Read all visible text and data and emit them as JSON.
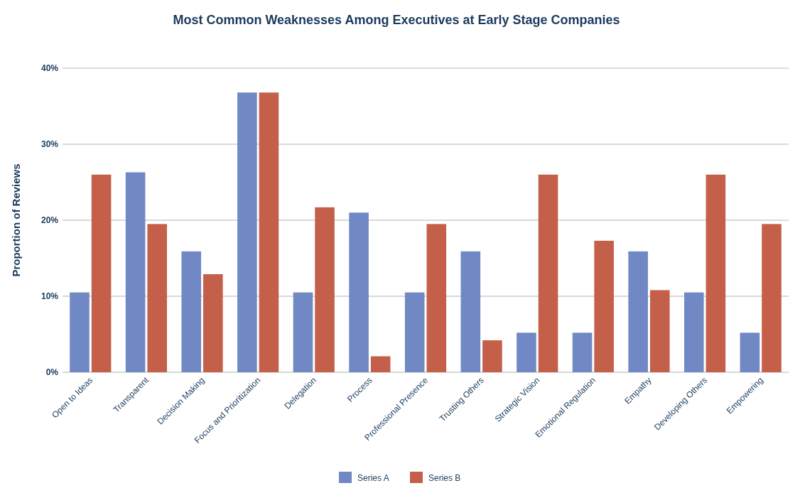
{
  "chart_data": {
    "type": "bar",
    "title": "Most Common Weaknesses Among Executives at Early Stage Companies",
    "ylabel": "Proportion of Reviews",
    "categories": [
      "Open to Ideas",
      "Transparent",
      "Decision Making",
      "Focus and Prioritization",
      "Delegation",
      "Process",
      "Professional Presence",
      "Trusting Others",
      "Strategic Vision",
      "Emotional Regulation",
      "Empathy",
      "Developing Others",
      "Empowering"
    ],
    "series": [
      {
        "name": "Series A",
        "color": "#7089c4",
        "values": [
          10.5,
          26.3,
          15.9,
          36.8,
          10.5,
          21.0,
          10.5,
          15.9,
          5.2,
          5.2,
          15.9,
          10.5,
          5.2
        ]
      },
      {
        "name": "Series B",
        "color": "#c4604a",
        "values": [
          26.0,
          19.5,
          12.9,
          36.8,
          21.7,
          2.1,
          19.5,
          4.2,
          26.0,
          17.3,
          10.8,
          26.0,
          19.5
        ]
      }
    ],
    "ylim": [
      0,
      40
    ],
    "yticks": [
      {
        "value": 0,
        "label": "0%"
      },
      {
        "value": 10,
        "label": "10%"
      },
      {
        "value": 20,
        "label": "20%"
      },
      {
        "value": 30,
        "label": "30%"
      },
      {
        "value": 40,
        "label": "40%"
      }
    ],
    "grid": "y",
    "legend": "bottom"
  }
}
